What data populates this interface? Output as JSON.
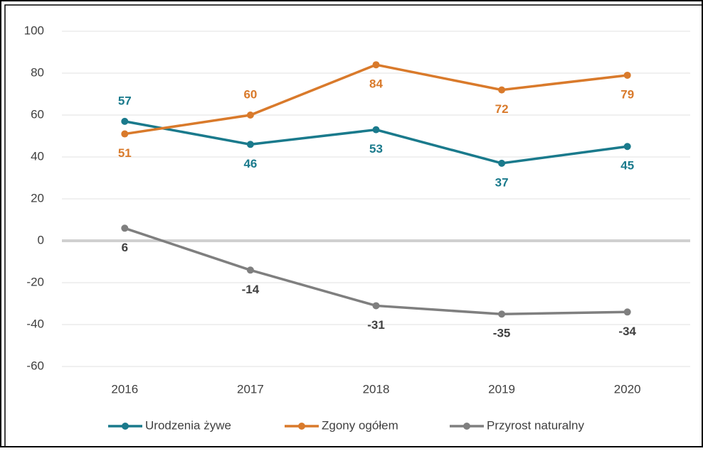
{
  "chart_data": {
    "type": "line",
    "categories": [
      "2016",
      "2017",
      "2018",
      "2019",
      "2020"
    ],
    "series": [
      {
        "name": "Urodzenia żywe",
        "color": "#1a7a8c",
        "values": [
          57,
          46,
          53,
          37,
          45
        ]
      },
      {
        "name": "Zgony ogółem",
        "color": "#d97a2b",
        "values": [
          51,
          60,
          84,
          72,
          79
        ]
      },
      {
        "name": "Przyrost naturalny",
        "color": "#7f7f7f",
        "values": [
          6,
          -14,
          -31,
          -35,
          -34
        ]
      }
    ],
    "ylim": [
      -60,
      100
    ],
    "yticks": [
      -60,
      -40,
      -20,
      0,
      20,
      40,
      60,
      80,
      100
    ],
    "grid": true,
    "legend": "bottom"
  }
}
